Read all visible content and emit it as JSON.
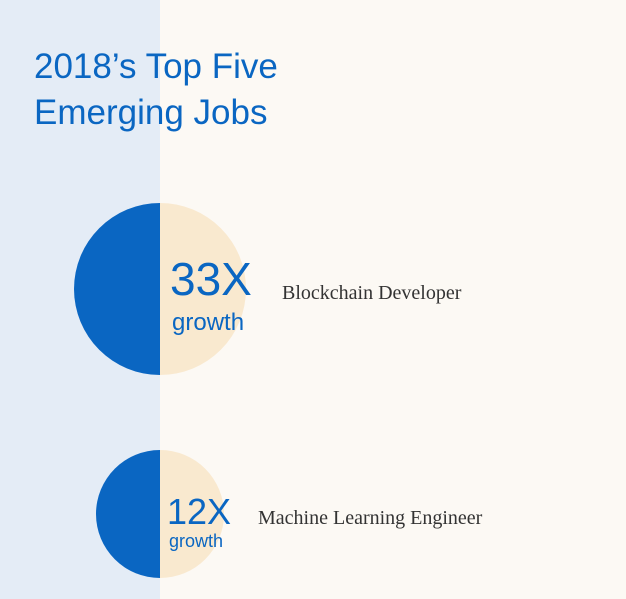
{
  "header": {
    "title_lines": [
      "2018’s Top Five",
      "Emerging Jobs"
    ]
  },
  "items": [
    {
      "growth": "33X",
      "growth_label": "growth",
      "job": "Blockchain Developer"
    },
    {
      "growth": "12X",
      "growth_label": "growth",
      "job": "Machine Learning Engineer"
    }
  ]
}
